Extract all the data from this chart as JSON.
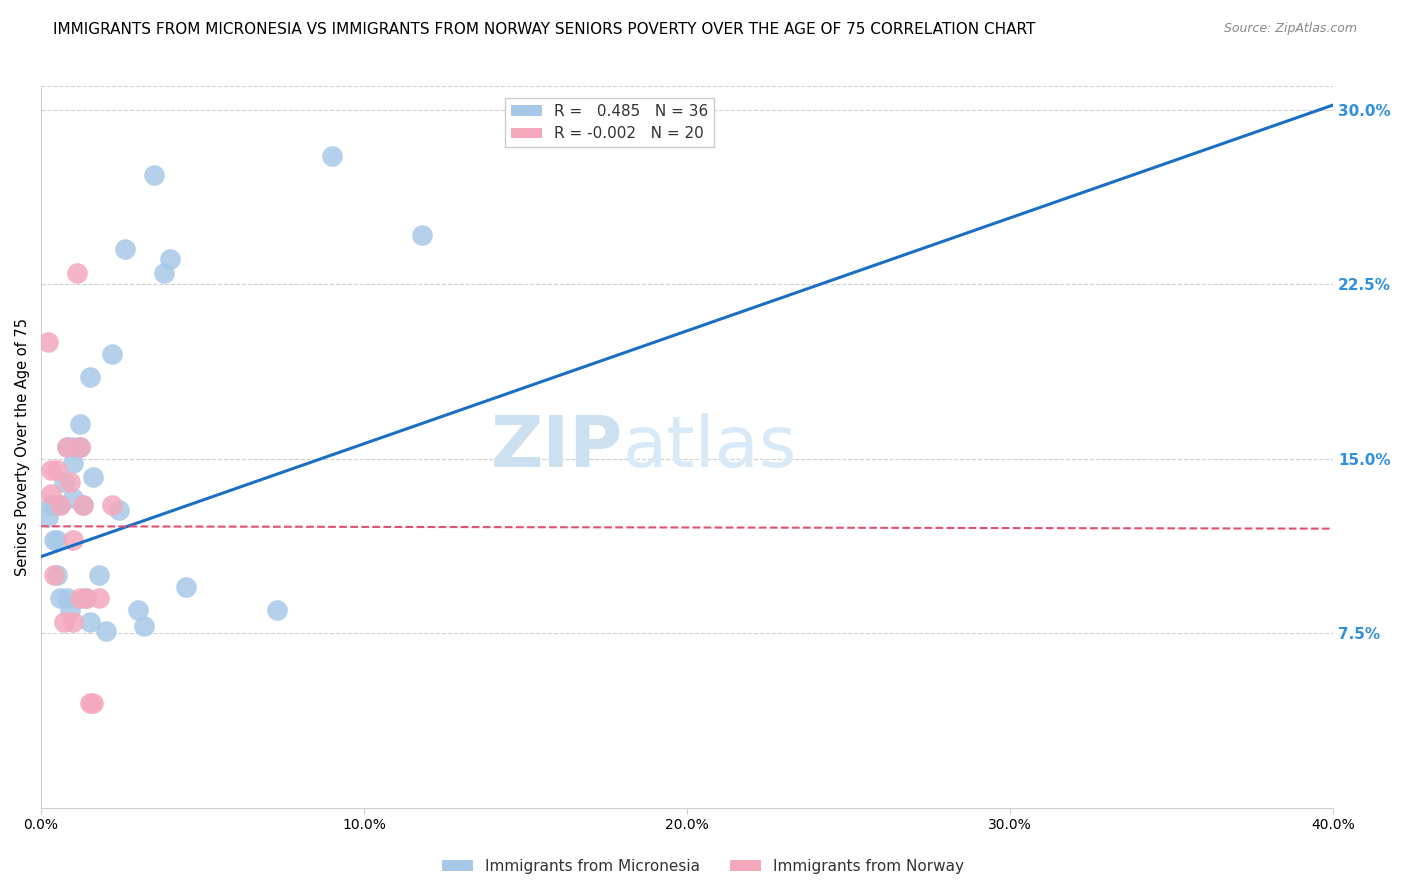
{
  "title": "IMMIGRANTS FROM MICRONESIA VS IMMIGRANTS FROM NORWAY SENIORS POVERTY OVER THE AGE OF 75 CORRELATION CHART",
  "source": "Source: ZipAtlas.com",
  "xlabel_ticks": [
    "0.0%",
    "10.0%",
    "20.0%",
    "30.0%",
    "40.0%"
  ],
  "xlabel_vals": [
    0.0,
    0.1,
    0.2,
    0.3,
    0.4
  ],
  "ylabel_ticks": [
    "7.5%",
    "15.0%",
    "22.5%",
    "30.0%"
  ],
  "ylabel_vals": [
    0.075,
    0.15,
    0.225,
    0.3
  ],
  "xlim": [
    0.0,
    0.4
  ],
  "ylim": [
    0.0,
    0.31
  ],
  "ylabel": "Seniors Poverty Over the Age of 75",
  "micronesia_color": "#a8c8e8",
  "norway_color": "#f4a8bc",
  "micronesia_R": 0.485,
  "micronesia_N": 36,
  "norway_R": -0.002,
  "norway_N": 20,
  "micronesia_line_color": "#1a6fc4",
  "norway_line_color": "#e05070",
  "watermark_zip": "ZIP",
  "watermark_atlas": "atlas",
  "background_color": "#ffffff",
  "grid_color": "#d0d0d0",
  "title_fontsize": 11,
  "axis_label_fontsize": 10.5,
  "tick_fontsize": 10,
  "legend_fontsize": 11,
  "watermark_fontsize_zip": 52,
  "watermark_fontsize_atlas": 52,
  "watermark_color": "#cce0f0",
  "right_tick_color": "#3090e0",
  "micronesia_x": [
    0.002,
    0.003,
    0.004,
    0.004,
    0.005,
    0.005,
    0.006,
    0.006,
    0.007,
    0.008,
    0.008,
    0.009,
    0.01,
    0.01,
    0.01,
    0.012,
    0.012,
    0.013,
    0.014,
    0.015,
    0.015,
    0.016,
    0.018,
    0.02,
    0.022,
    0.024,
    0.026,
    0.03,
    0.032,
    0.035,
    0.038,
    0.04,
    0.045,
    0.073,
    0.09,
    0.118
  ],
  "micronesia_y": [
    0.125,
    0.13,
    0.13,
    0.115,
    0.115,
    0.1,
    0.09,
    0.13,
    0.14,
    0.155,
    0.09,
    0.085,
    0.155,
    0.148,
    0.133,
    0.165,
    0.155,
    0.13,
    0.09,
    0.08,
    0.185,
    0.142,
    0.1,
    0.076,
    0.195,
    0.128,
    0.24,
    0.085,
    0.078,
    0.272,
    0.23,
    0.236,
    0.095,
    0.085,
    0.28,
    0.246
  ],
  "norway_x": [
    0.002,
    0.003,
    0.003,
    0.004,
    0.005,
    0.006,
    0.007,
    0.008,
    0.009,
    0.01,
    0.01,
    0.011,
    0.012,
    0.012,
    0.013,
    0.014,
    0.015,
    0.016,
    0.018,
    0.022
  ],
  "norway_y": [
    0.2,
    0.145,
    0.135,
    0.1,
    0.145,
    0.13,
    0.08,
    0.155,
    0.14,
    0.115,
    0.08,
    0.23,
    0.155,
    0.09,
    0.13,
    0.09,
    0.045,
    0.045,
    0.09,
    0.13
  ],
  "mic_line_x0": 0.0,
  "mic_line_y0": 0.108,
  "mic_line_x1": 0.4,
  "mic_line_y1": 0.302,
  "nor_line_x0": 0.0,
  "nor_line_y0": 0.121,
  "nor_line_x1": 0.4,
  "nor_line_y1": 0.12
}
